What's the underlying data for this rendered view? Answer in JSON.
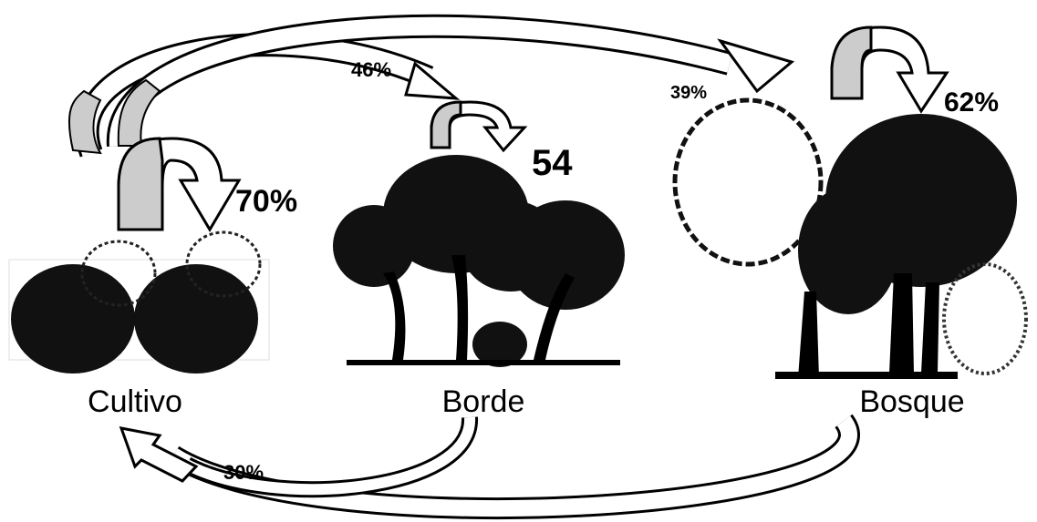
{
  "nodes": [
    {
      "label": "Cultivo",
      "self_loop": "70%"
    },
    {
      "label": "Borde",
      "self_loop": "54"
    },
    {
      "label": "Bosque",
      "self_loop": "62%"
    }
  ],
  "edges": [
    {
      "label": "46%"
    },
    {
      "label": "39%"
    },
    {
      "label": "30%"
    }
  ]
}
